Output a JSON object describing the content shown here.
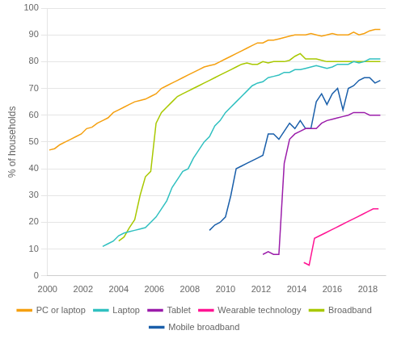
{
  "chart_data": {
    "type": "line",
    "y_label": "% of households",
    "xlim": [
      2000,
      2019
    ],
    "ylim": [
      0,
      100
    ],
    "xticks": [
      2000,
      2002,
      2004,
      2006,
      2008,
      2010,
      2012,
      2014,
      2016,
      2018
    ],
    "yticks": [
      0,
      10,
      20,
      30,
      40,
      50,
      60,
      70,
      80,
      90,
      100
    ],
    "grid": "y",
    "legend": "bottom",
    "series": [
      {
        "name": "PC or laptop",
        "color": "#F5A010",
        "x": [
          2000.1,
          2000.4,
          2000.7,
          2001.0,
          2001.3,
          2001.6,
          2001.9,
          2002.2,
          2002.5,
          2002.8,
          2003.1,
          2003.4,
          2003.7,
          2004.0,
          2004.3,
          2004.6,
          2004.9,
          2005.2,
          2005.5,
          2005.8,
          2006.1,
          2006.4,
          2006.7,
          2007.0,
          2007.3,
          2007.6,
          2007.9,
          2008.2,
          2008.5,
          2008.8,
          2009.1,
          2009.4,
          2009.7,
          2010.0,
          2010.3,
          2010.6,
          2010.9,
          2011.2,
          2011.5,
          2011.8,
          2012.1,
          2012.4,
          2012.7,
          2013.0,
          2013.3,
          2013.6,
          2013.9,
          2014.2,
          2014.5,
          2014.8,
          2015.1,
          2015.4,
          2015.7,
          2016.0,
          2016.3,
          2016.6,
          2016.9,
          2017.2,
          2017.5,
          2017.8,
          2018.1,
          2018.4,
          2018.7
        ],
        "values": [
          47,
          47.5,
          49,
          50,
          51,
          52,
          53,
          55,
          55.5,
          57,
          58,
          59,
          61,
          62,
          63,
          64,
          65,
          65.5,
          66,
          67,
          68,
          70,
          71,
          72,
          73,
          74,
          75,
          76,
          77,
          78,
          78.5,
          79,
          80,
          81,
          82,
          83,
          84,
          85,
          86,
          87,
          87,
          88,
          88,
          88.5,
          89,
          89.5,
          90,
          90,
          90,
          90.5,
          90,
          89.5,
          90,
          90.5,
          90,
          90,
          90,
          91,
          90,
          90.5,
          91.5,
          92,
          92
        ]
      },
      {
        "name": "Laptop",
        "color": "#30C0C0",
        "x": [
          2003.1,
          2003.4,
          2003.7,
          2004.0,
          2004.3,
          2004.6,
          2004.9,
          2005.2,
          2005.5,
          2005.8,
          2006.1,
          2006.4,
          2006.7,
          2007.0,
          2007.3,
          2007.6,
          2007.9,
          2008.2,
          2008.5,
          2008.8,
          2009.1,
          2009.4,
          2009.7,
          2010.0,
          2010.3,
          2010.6,
          2010.9,
          2011.2,
          2011.5,
          2011.8,
          2012.1,
          2012.4,
          2012.7,
          2013.0,
          2013.3,
          2013.6,
          2013.9,
          2014.2,
          2014.5,
          2014.8,
          2015.1,
          2015.4,
          2015.7,
          2016.0,
          2016.3,
          2016.6,
          2016.9,
          2017.2,
          2017.5,
          2017.8,
          2018.1,
          2018.4,
          2018.7
        ],
        "values": [
          11,
          12,
          13,
          15,
          16,
          16.5,
          17,
          17.5,
          18,
          20,
          22,
          25,
          28,
          33,
          36,
          39,
          40,
          44,
          47,
          50,
          52,
          56,
          58,
          61,
          63,
          65,
          67,
          69,
          71,
          72,
          72.5,
          74,
          74.5,
          75,
          76,
          76,
          77,
          77,
          77.5,
          78,
          78.5,
          78,
          77.5,
          78,
          79,
          79,
          79,
          80,
          79.5,
          80,
          81,
          81,
          81
        ]
      },
      {
        "name": "Tablet",
        "color": "#9B1DAA",
        "x": [
          2012.1,
          2012.4,
          2012.7,
          2013.0,
          2013.3,
          2013.6,
          2013.9,
          2014.2,
          2014.5,
          2014.8,
          2015.1,
          2015.4,
          2015.7,
          2016.0,
          2016.3,
          2016.6,
          2016.9,
          2017.2,
          2017.5,
          2017.8,
          2018.1,
          2018.4,
          2018.7
        ],
        "values": [
          8,
          9,
          8,
          8,
          42,
          51,
          53,
          54,
          55,
          55,
          55,
          57,
          58,
          58.5,
          59,
          59.5,
          60,
          61,
          61,
          61,
          60,
          60,
          60
        ]
      },
      {
        "name": "Wearable technology",
        "color": "#FF1493",
        "x": [
          2014.4,
          2014.7,
          2015.0,
          2015.3,
          2015.6,
          2015.9,
          2016.2,
          2016.5,
          2016.8,
          2017.1,
          2017.4,
          2017.7,
          2018.0,
          2018.3,
          2018.6
        ],
        "values": [
          5,
          4,
          14,
          15,
          16,
          17,
          18,
          19,
          20,
          21,
          22,
          23,
          24,
          25,
          25
        ]
      },
      {
        "name": "Broadband",
        "color": "#A8C800",
        "x": [
          2004.0,
          2004.3,
          2004.6,
          2004.9,
          2005.2,
          2005.5,
          2005.8,
          2006.1,
          2006.4,
          2006.7,
          2007.0,
          2007.3,
          2007.6,
          2007.9,
          2008.2,
          2008.5,
          2008.8,
          2009.1,
          2009.4,
          2009.7,
          2010.0,
          2010.3,
          2010.6,
          2010.9,
          2011.2,
          2011.5,
          2011.8,
          2012.1,
          2012.4,
          2012.7,
          2013.0,
          2013.3,
          2013.6,
          2013.9,
          2014.2,
          2014.5,
          2014.8,
          2015.1,
          2015.4,
          2015.7,
          2016.0,
          2016.3,
          2016.6,
          2016.9,
          2017.2,
          2017.5,
          2017.8,
          2018.1,
          2018.4,
          2018.7
        ],
        "values": [
          13,
          14.5,
          18,
          21,
          30,
          37,
          39,
          57,
          61,
          63,
          65,
          67,
          68,
          69,
          70,
          71,
          72,
          73,
          74,
          75,
          76,
          77,
          78,
          79,
          79.5,
          79,
          79,
          80,
          79.5,
          80,
          80,
          80,
          80.5,
          82,
          83,
          81,
          81,
          81,
          80.5,
          80,
          80,
          80,
          80,
          80,
          80,
          80,
          80,
          80,
          80,
          80
        ]
      },
      {
        "name": "Mobile broadband",
        "color": "#1A5FAA",
        "x": [
          2009.1,
          2009.4,
          2009.7,
          2010.0,
          2010.3,
          2010.6,
          2010.9,
          2011.2,
          2011.5,
          2011.8,
          2012.1,
          2012.4,
          2012.7,
          2013.0,
          2013.3,
          2013.6,
          2013.9,
          2014.2,
          2014.5,
          2014.8,
          2015.1,
          2015.4,
          2015.7,
          2016.0,
          2016.3,
          2016.6,
          2016.9,
          2017.2,
          2017.5,
          2017.8,
          2018.1,
          2018.4,
          2018.7
        ],
        "values": [
          17,
          19,
          20,
          22,
          30,
          40,
          41,
          42,
          43,
          44,
          45,
          53,
          53,
          51,
          54,
          57,
          55,
          58,
          55,
          55,
          65,
          68,
          64,
          68,
          70,
          62,
          70,
          71,
          73,
          74,
          74,
          72,
          73
        ]
      }
    ]
  }
}
